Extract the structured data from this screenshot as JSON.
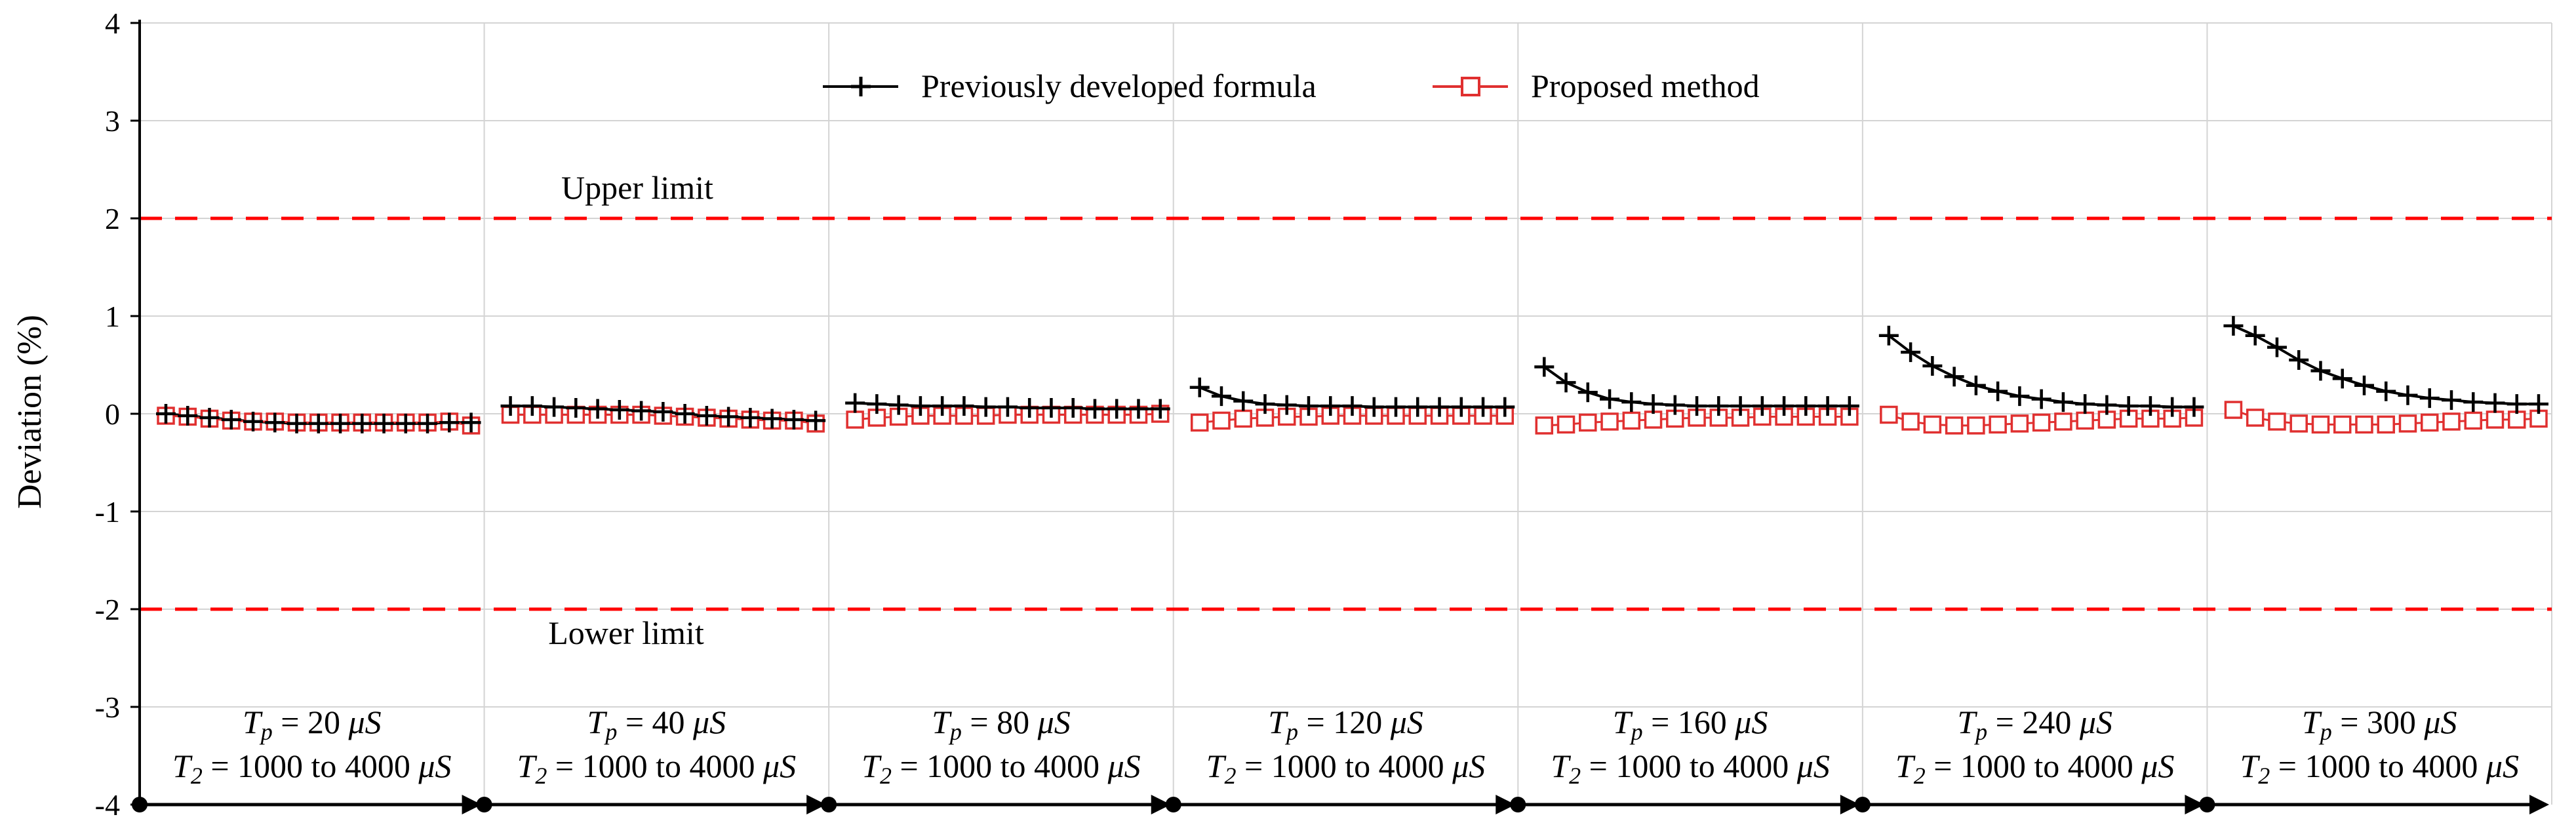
{
  "chart_data": {
    "type": "line",
    "title": "",
    "xlabel": "",
    "ylabel": "Deviation (%)",
    "ylim": [
      -4,
      4
    ],
    "yticks": [
      "4",
      "3",
      "2",
      "1",
      "0",
      "-1",
      "-2",
      "-3",
      "-4"
    ],
    "grid": true,
    "legend_position": "top-center",
    "legend": {
      "previous": "Previously developed formula",
      "proposed": "Proposed method"
    },
    "reference_lines": [
      {
        "name": "upper",
        "label": "Upper limit",
        "value": 2,
        "color": "#ff0000"
      },
      {
        "name": "lower",
        "label": "Lower limit",
        "value": -2,
        "color": "#ff0000"
      }
    ],
    "colors": {
      "previous": "#000000",
      "proposed": "#e03030",
      "limit": "#ff0000",
      "grid": "#d4d4d4"
    },
    "segments": [
      {
        "tp_label": "T",
        "tp_sub": "p",
        "tp_value": " = 20 ",
        "mu": "μS",
        "t2_label": "T",
        "t2_sub": "2",
        "t2_value": " = 1000 to 4000 ",
        "t2_mu": "μS",
        "previous": [
          0.0,
          -0.02,
          -0.04,
          -0.06,
          -0.08,
          -0.09,
          -0.1,
          -0.1,
          -0.1,
          -0.1,
          -0.1,
          -0.1,
          -0.1,
          -0.09,
          -0.09
        ],
        "proposed": [
          -0.02,
          -0.03,
          -0.05,
          -0.07,
          -0.08,
          -0.08,
          -0.09,
          -0.09,
          -0.09,
          -0.09,
          -0.09,
          -0.09,
          -0.09,
          -0.08,
          -0.12
        ]
      },
      {
        "tp_label": "T",
        "tp_sub": "p",
        "tp_value": " = 40 ",
        "mu": "μS",
        "t2_label": "T",
        "t2_sub": "2",
        "t2_value": " = 1000 to 4000 ",
        "t2_mu": "μS",
        "previous": [
          0.08,
          0.08,
          0.07,
          0.06,
          0.05,
          0.04,
          0.03,
          0.02,
          0.0,
          -0.02,
          -0.03,
          -0.04,
          -0.05,
          -0.06,
          -0.07
        ],
        "proposed": [
          -0.01,
          -0.01,
          -0.01,
          -0.01,
          -0.01,
          -0.01,
          -0.01,
          -0.02,
          -0.03,
          -0.04,
          -0.05,
          -0.06,
          -0.07,
          -0.07,
          -0.1
        ]
      },
      {
        "tp_label": "T",
        "tp_sub": "p",
        "tp_value": " = 80 ",
        "mu": "μS",
        "t2_label": "T",
        "t2_sub": "2",
        "t2_value": " = 1000 to 4000 ",
        "t2_mu": "μS",
        "previous": [
          0.11,
          0.1,
          0.09,
          0.08,
          0.08,
          0.08,
          0.07,
          0.07,
          0.06,
          0.06,
          0.06,
          0.05,
          0.05,
          0.05,
          0.05
        ],
        "proposed": [
          -0.06,
          -0.04,
          -0.03,
          -0.02,
          -0.02,
          -0.02,
          -0.02,
          -0.01,
          -0.01,
          -0.01,
          -0.01,
          -0.01,
          -0.01,
          -0.01,
          0.0
        ]
      },
      {
        "tp_label": "T",
        "tp_sub": "p",
        "tp_value": " = 120 ",
        "mu": "μS",
        "t2_label": "T",
        "t2_sub": "2",
        "t2_value": " = 1000 to 4000 ",
        "t2_mu": "μS",
        "previous": [
          0.27,
          0.18,
          0.13,
          0.1,
          0.09,
          0.08,
          0.08,
          0.08,
          0.07,
          0.07,
          0.07,
          0.07,
          0.07,
          0.07,
          0.07
        ],
        "proposed": [
          -0.09,
          -0.07,
          -0.05,
          -0.04,
          -0.03,
          -0.03,
          -0.02,
          -0.02,
          -0.02,
          -0.02,
          -0.02,
          -0.02,
          -0.02,
          -0.02,
          -0.02
        ]
      },
      {
        "tp_label": "T",
        "tp_sub": "p",
        "tp_value": " = 160 ",
        "mu": "μS",
        "t2_label": "T",
        "t2_sub": "2",
        "t2_value": " = 1000 to 4000 ",
        "t2_mu": "μS",
        "previous": [
          0.48,
          0.32,
          0.22,
          0.15,
          0.12,
          0.1,
          0.09,
          0.08,
          0.08,
          0.08,
          0.08,
          0.08,
          0.08,
          0.08,
          0.08
        ],
        "proposed": [
          -0.12,
          -0.11,
          -0.09,
          -0.08,
          -0.07,
          -0.06,
          -0.05,
          -0.04,
          -0.04,
          -0.04,
          -0.03,
          -0.03,
          -0.03,
          -0.03,
          -0.03
        ]
      },
      {
        "tp_label": "T",
        "tp_sub": "p",
        "tp_value": " = 240 ",
        "mu": "μS",
        "t2_label": "T",
        "t2_sub": "2",
        "t2_value": " = 1000 to 4000 ",
        "t2_mu": "μS",
        "previous": [
          0.8,
          0.63,
          0.49,
          0.38,
          0.29,
          0.23,
          0.18,
          0.15,
          0.12,
          0.1,
          0.09,
          0.08,
          0.08,
          0.07,
          0.07
        ],
        "proposed": [
          -0.01,
          -0.08,
          -0.11,
          -0.12,
          -0.12,
          -0.11,
          -0.1,
          -0.09,
          -0.08,
          -0.07,
          -0.06,
          -0.05,
          -0.05,
          -0.05,
          -0.04
        ]
      },
      {
        "tp_label": "T",
        "tp_sub": "p",
        "tp_value": " = 300 ",
        "mu": "μS",
        "t2_label": "T",
        "t2_sub": "2",
        "t2_value": " = 1000 to 4000 ",
        "t2_mu": "μS",
        "previous": [
          0.9,
          0.8,
          0.68,
          0.55,
          0.44,
          0.36,
          0.29,
          0.23,
          0.19,
          0.16,
          0.14,
          0.12,
          0.11,
          0.1,
          0.1
        ],
        "proposed": [
          0.04,
          -0.04,
          -0.08,
          -0.1,
          -0.11,
          -0.11,
          -0.11,
          -0.11,
          -0.1,
          -0.09,
          -0.08,
          -0.07,
          -0.06,
          -0.06,
          -0.05
        ]
      }
    ]
  }
}
